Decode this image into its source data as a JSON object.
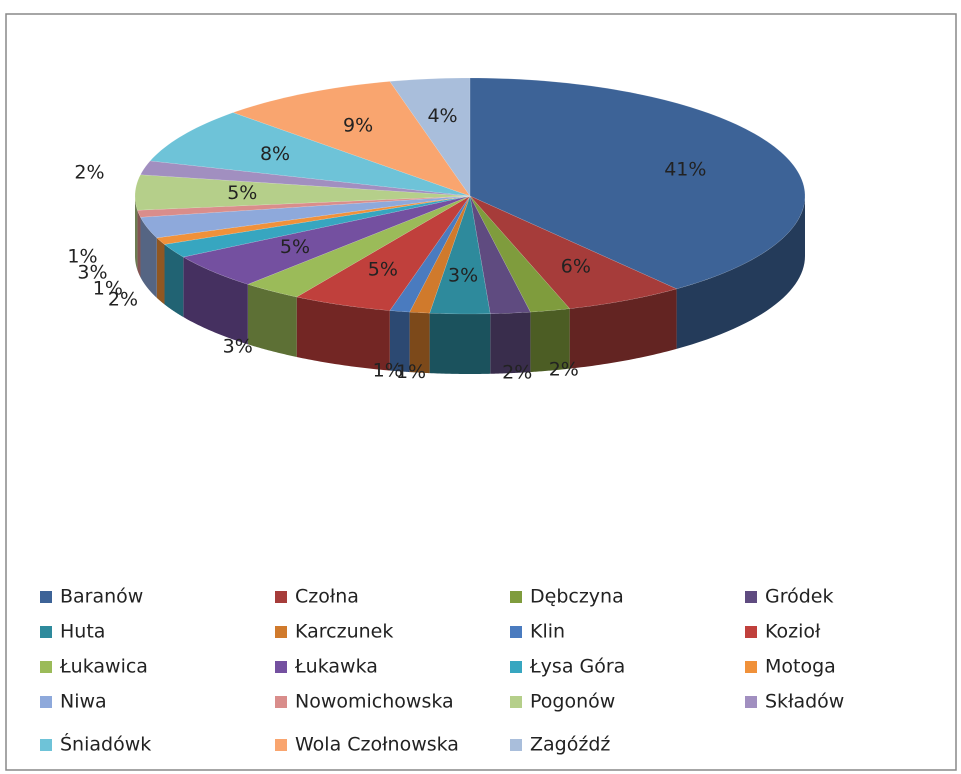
{
  "chart_data": {
    "type": "pie3d",
    "categories": [
      "Baranów",
      "Czołna",
      "Dębczyna",
      "Gródek",
      "Huta",
      "Karczunek",
      "Klin",
      "Kozioł",
      "Łukawica",
      "Łukawka",
      "Łysa Góra",
      "Motoga",
      "Niwa",
      "Nowomichowska",
      "Pogonów",
      "Składów",
      "Śniadówk",
      "Wola Czołnowska",
      "Zagóźdź"
    ],
    "values": [
      41,
      6,
      2,
      2,
      3,
      1,
      1,
      5,
      3,
      5,
      2,
      1,
      3,
      1,
      5,
      2,
      8,
      9,
      4
    ],
    "value_labels": [
      "41%",
      "6%",
      "2%",
      "2%",
      "3%",
      "1%",
      "1%",
      "5%",
      "3%",
      "5%",
      "2%",
      "1%",
      "3%",
      "1%",
      "5%",
      "2%",
      "8%",
      "9%",
      "4%"
    ],
    "colors": [
      "#3d6397",
      "#a63c3a",
      "#7f9c3d",
      "#5f4b80",
      "#2e8a9c",
      "#d07a2c",
      "#4a7bbf",
      "#c0403c",
      "#9bbb59",
      "#7450a0",
      "#37a6c0",
      "#f0913a",
      "#8ea9db",
      "#d98d8b",
      "#b5cf8a",
      "#a18fc0",
      "#6ec3d8",
      "#f9a56f",
      "#a9bedb"
    ],
    "legend": "bottom"
  }
}
